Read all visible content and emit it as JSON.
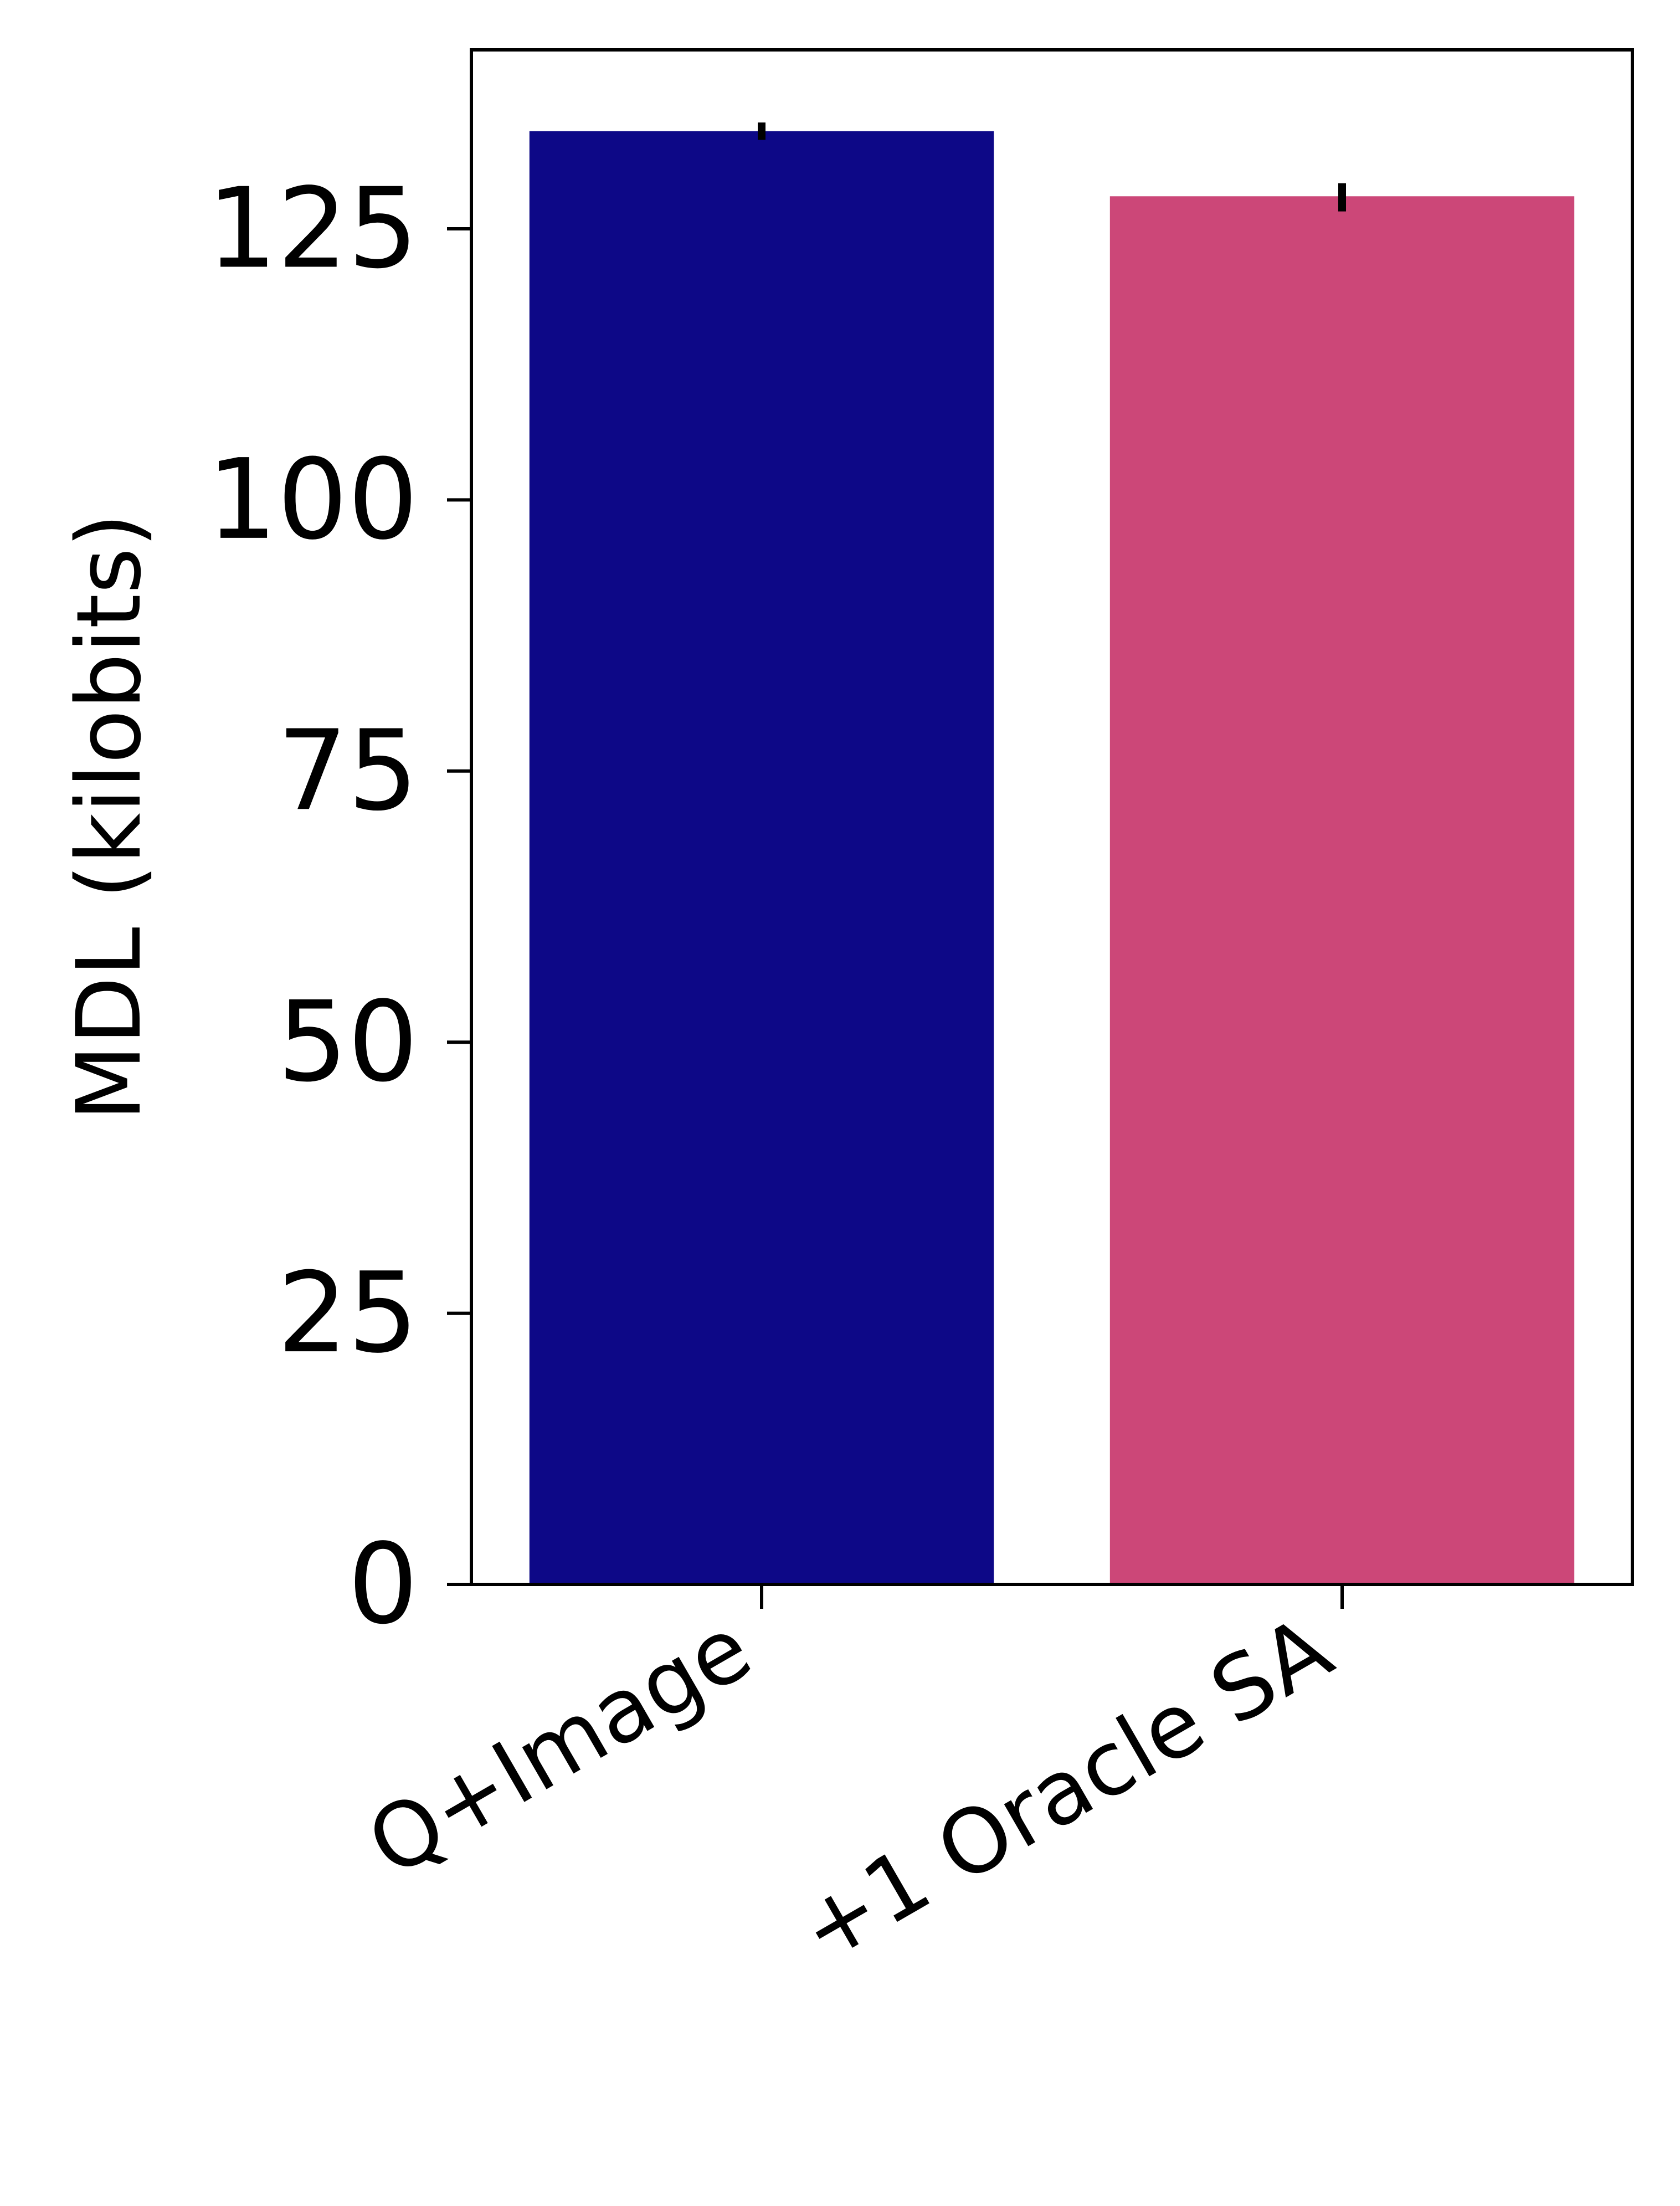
{
  "chart_data": {
    "type": "bar",
    "categories": [
      "Q+Image",
      "+1 Oracle SA"
    ],
    "values": [
      134,
      128
    ],
    "error_bars": [
      {
        "low": 133.2,
        "high": 134.8
      },
      {
        "low": 126.6,
        "high": 129.2
      }
    ],
    "colors": [
      "#0d0887",
      "#cc4778"
    ],
    "xlabel": "",
    "ylabel": "MDL (kilobits)",
    "ylim": [
      0,
      141.5
    ],
    "yticks": [
      0,
      25,
      50,
      75,
      100,
      125
    ],
    "ytick_labels": [
      "0",
      "25",
      "50",
      "75",
      "100",
      "125"
    ],
    "grid": false,
    "legend": false,
    "title": ""
  }
}
